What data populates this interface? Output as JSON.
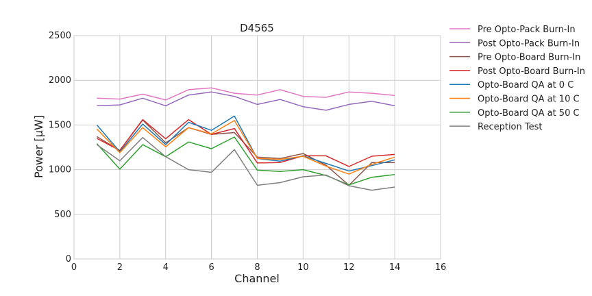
{
  "chart_data": {
    "type": "line",
    "title": "D4565",
    "xlabel": "Channel",
    "ylabel": "Power [μW]",
    "xlim": [
      0,
      16
    ],
    "ylim": [
      0,
      2500
    ],
    "xticks": [
      "0",
      "2",
      "4",
      "6",
      "8",
      "10",
      "12",
      "14",
      "16"
    ],
    "yticks": [
      "0",
      "500",
      "1000",
      "1500",
      "2000",
      "2500"
    ],
    "grid": true,
    "legend_position": "outside-right",
    "x": [
      1,
      2,
      3,
      4,
      5,
      6,
      7,
      8,
      9,
      10,
      11,
      12,
      13,
      14
    ],
    "series": [
      {
        "name": "Pre Opto-Pack Burn-In",
        "color": "#e377c2",
        "values": [
          1800,
          1790,
          1845,
          1780,
          1895,
          1915,
          1855,
          1835,
          1895,
          1820,
          1810,
          1870,
          1855,
          1830
        ]
      },
      {
        "name": "Post Opto-Pack Burn-In",
        "color": "#9467bd",
        "values": [
          1715,
          1725,
          1800,
          1715,
          1835,
          1870,
          1820,
          1730,
          1785,
          1705,
          1665,
          1730,
          1765,
          1715
        ]
      },
      {
        "name": "Pre Opto-Board Burn-In",
        "color": "#8c564b",
        "values": [
          1370,
          1215,
          1555,
          1300,
          1470,
          1395,
          1415,
          1140,
          1125,
          1180,
          1050,
          825,
          1080,
          1080
        ]
      },
      {
        "name": "Post Opto-Board Burn-In",
        "color": "#d62728",
        "values": [
          1350,
          1215,
          1560,
          1345,
          1560,
          1395,
          1460,
          1075,
          1080,
          1155,
          1155,
          1035,
          1150,
          1170
        ]
      },
      {
        "name": "Opto-Board QA at 0 C",
        "color": "#1f77b4",
        "values": [
          1500,
          1200,
          1510,
          1280,
          1530,
          1440,
          1600,
          1125,
          1095,
          1155,
          1070,
          985,
          1045,
          1110
        ]
      },
      {
        "name": "Opto-Board QA at 10 C",
        "color": "#ff7f0e",
        "values": [
          1455,
          1190,
          1470,
          1255,
          1470,
          1400,
          1550,
          1125,
          1115,
          1150,
          1040,
          950,
          1060,
          1140
        ]
      },
      {
        "name": "Opto-Board QA at 50 C",
        "color": "#2ca02c",
        "values": [
          1290,
          1005,
          1280,
          1145,
          1310,
          1235,
          1365,
          995,
          980,
          1000,
          935,
          830,
          915,
          945
        ]
      },
      {
        "name": "Reception Test",
        "color": "#7f7f7f",
        "values": [
          1280,
          1100,
          1360,
          1145,
          1000,
          970,
          1225,
          825,
          855,
          920,
          940,
          820,
          770,
          805
        ]
      }
    ]
  }
}
